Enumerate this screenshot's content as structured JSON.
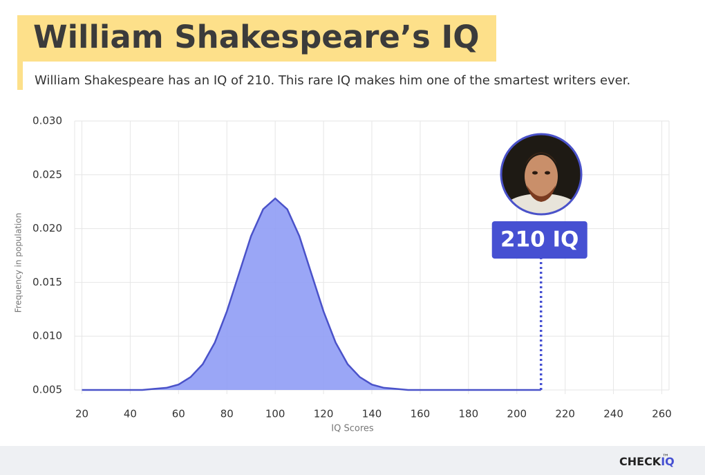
{
  "chart_data": {
    "type": "area",
    "title": "William Shakespeare’s IQ",
    "subtitle": "William Shakespeare has an IQ of 210. This rare IQ makes him one of the smartest writers ever.",
    "x_label": "IQ Scores",
    "y_label": "Frequency in population",
    "x": [
      20,
      25,
      30,
      35,
      40,
      45,
      50,
      55,
      60,
      65,
      70,
      75,
      80,
      85,
      90,
      95,
      100,
      105,
      110,
      115,
      120,
      125,
      130,
      135,
      140,
      145,
      150,
      155,
      160,
      165,
      170,
      175,
      180,
      185,
      190,
      195,
      200,
      205,
      210
    ],
    "values": [
      0.005,
      0.005,
      0.005,
      0.005,
      0.005,
      0.005,
      0.0051,
      0.0052,
      0.0055,
      0.0062,
      0.0074,
      0.0094,
      0.0123,
      0.0158,
      0.0193,
      0.0218,
      0.0228,
      0.0218,
      0.0193,
      0.0158,
      0.0123,
      0.0094,
      0.0074,
      0.0062,
      0.0055,
      0.0052,
      0.0051,
      0.005,
      0.005,
      0.005,
      0.005,
      0.005,
      0.005,
      0.005,
      0.005,
      0.005,
      0.005,
      0.005,
      0.005
    ],
    "color": "#4a52c9",
    "fill": "#8f9cf5",
    "xlim": [
      17,
      263
    ],
    "ylim": [
      0.005,
      0.03
    ],
    "xticks": [
      20,
      40,
      60,
      80,
      100,
      120,
      140,
      160,
      180,
      200,
      220,
      240,
      260
    ],
    "yticks": [
      0.005,
      {
        "value": 0.01,
        "label": "0.010"
      },
      0.015,
      {
        "value": 0.02,
        "label": "0.020"
      },
      0.025,
      {
        "value": 0.03,
        "label": "0.030"
      }
    ],
    "grid": true,
    "marker": {
      "x": 210,
      "label": "210 IQ",
      "color": "#4650d2"
    }
  },
  "footer": {
    "brand": [
      "CHECK",
      "IQ"
    ],
    "trademark": "™"
  }
}
